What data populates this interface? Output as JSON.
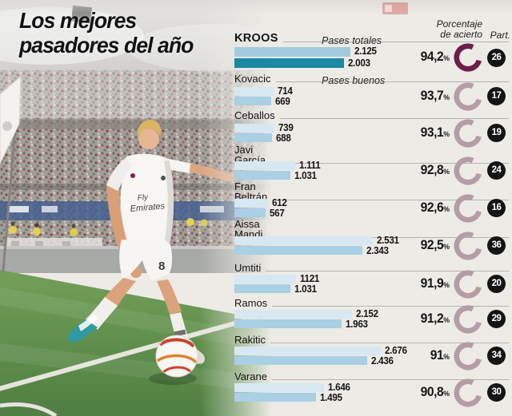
{
  "title": {
    "line1": "Los mejores",
    "line2": "pasadores del año"
  },
  "column_headers": {
    "accuracy_line1": "Porcentaje",
    "accuracy_line2": "de acierto",
    "matches": "Part."
  },
  "legend": {
    "total_passes": "Pases totales",
    "good_passes": "Pases buenos"
  },
  "colors": {
    "bar_total": "#d7e8f2",
    "bar_good": "#a9d0e4",
    "bar_total_highlight": "#a4cadd",
    "bar_good_highlight": "#1b89a4",
    "ring": "#b59da7",
    "ring_highlight": "#6e1e4b",
    "badge_bg": "#141414"
  },
  "photo": {
    "shirt_text_line1": "Fly",
    "shirt_text_line2": "Emirates",
    "shorts_number": "8"
  },
  "chart_data": {
    "type": "bar",
    "orientation": "horizontal",
    "title": "Los mejores pasadores del año",
    "series_labels": [
      "Pases totales",
      "Pases buenos"
    ],
    "value_note": "accuracy_pct = porcentaje de acierto, matches = partidos (Part.)",
    "rows": [
      {
        "name": "Kroos",
        "lines": [
          "KROOS"
        ],
        "total": 2125,
        "good": 2003,
        "total_label": "2.125",
        "good_label": "2.003",
        "accuracy_pct": "94,2",
        "matches": "26",
        "highlight": true
      },
      {
        "name": "Kovacic",
        "lines": [
          "Kovacic"
        ],
        "total": 714,
        "good": 669,
        "total_label": "714",
        "good_label": "669",
        "accuracy_pct": "93,7",
        "matches": "17",
        "highlight": false
      },
      {
        "name": "Ceballos",
        "lines": [
          "Ceballos"
        ],
        "total": 739,
        "good": 688,
        "total_label": "739",
        "good_label": "688",
        "accuracy_pct": "93,1",
        "matches": "19",
        "highlight": false
      },
      {
        "name": "Javi García",
        "lines": [
          "Javi",
          "García"
        ],
        "total": 1111,
        "good": 1031,
        "total_label": "1.111",
        "good_label": "1.031",
        "accuracy_pct": "92,8",
        "matches": "24",
        "highlight": false
      },
      {
        "name": "Fran Beltrán",
        "lines": [
          "Fran",
          "Beltrán"
        ],
        "total": 612,
        "good": 567,
        "total_label": "612",
        "good_label": "567",
        "accuracy_pct": "92,6",
        "matches": "16",
        "highlight": false
      },
      {
        "name": "Aissa Mandi",
        "lines": [
          "Aissa",
          "Mandi"
        ],
        "total": 2531,
        "good": 2343,
        "total_label": "2.531",
        "good_label": "2.343",
        "accuracy_pct": "92,5",
        "matches": "36",
        "highlight": false
      },
      {
        "name": "Umtiti",
        "lines": [
          "Umtiti"
        ],
        "total": 1121,
        "good": 1031,
        "total_label": "1121",
        "good_label": "1.031",
        "accuracy_pct": "91,9",
        "matches": "20",
        "highlight": false
      },
      {
        "name": "Ramos",
        "lines": [
          "Ramos"
        ],
        "total": 2152,
        "good": 1963,
        "total_label": "2.152",
        "good_label": "1.963",
        "accuracy_pct": "91,2",
        "matches": "29",
        "highlight": false
      },
      {
        "name": "Rakitic",
        "lines": [
          "Rakitic"
        ],
        "total": 2676,
        "good": 2436,
        "total_label": "2.676",
        "good_label": "2.436",
        "accuracy_pct": "91",
        "matches": "34",
        "highlight": false
      },
      {
        "name": "Varane",
        "lines": [
          "Varane"
        ],
        "total": 1646,
        "good": 1495,
        "total_label": "1.646",
        "good_label": "1.495",
        "accuracy_pct": "90,8",
        "matches": "30",
        "highlight": false
      }
    ]
  }
}
